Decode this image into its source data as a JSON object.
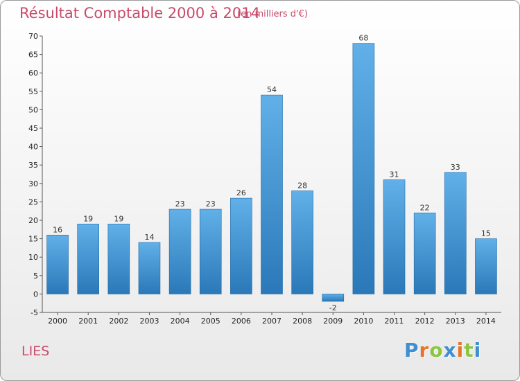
{
  "chart_data": {
    "type": "bar",
    "title": "Résultat Comptable 2000 à 2014",
    "subtitle": "(en milliers d'€)",
    "categories": [
      "2000",
      "2001",
      "2002",
      "2003",
      "2004",
      "2005",
      "2006",
      "2007",
      "2008",
      "2009",
      "2010",
      "2011",
      "2012",
      "2013",
      "2014"
    ],
    "values": [
      16,
      19,
      19,
      14,
      23,
      23,
      26,
      54,
      28,
      -2,
      68,
      31,
      22,
      33,
      15
    ],
    "ylim": [
      -5,
      70
    ],
    "yticks": [
      -5,
      0,
      5,
      10,
      15,
      20,
      25,
      30,
      35,
      40,
      45,
      50,
      55,
      60,
      65,
      70
    ],
    "xlabel": "",
    "ylabel": "",
    "grid": false
  },
  "place_name": "LIES",
  "brand": {
    "letters": [
      "P",
      "r",
      "o",
      "x",
      "i",
      "t",
      "i"
    ],
    "colors": [
      "#3d8fd1",
      "#e8732a",
      "#8cc63f",
      "#3d8fd1",
      "#e8732a",
      "#8cc63f",
      "#3d8fd1"
    ]
  },
  "colors": {
    "bar_dark": "#2a78b8",
    "bar_light": "#62b0e8",
    "accent": "#c94a6a"
  }
}
